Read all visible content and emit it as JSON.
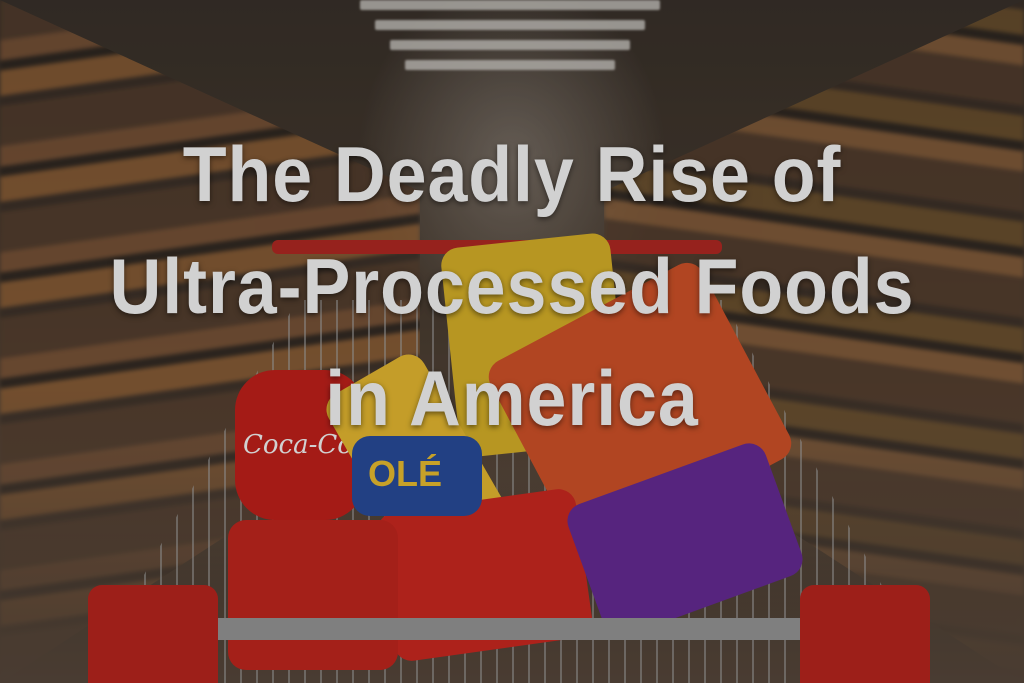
{
  "headline": {
    "line1": "The Deadly Rise of",
    "line2": "Ultra-Processed Foods",
    "line3": "in America"
  },
  "product_labels": {
    "soda": "Coca-Cola",
    "snack": "OLÉ"
  },
  "colors": {
    "cart_red": "#c0261f",
    "title_text": "#ffffff"
  }
}
